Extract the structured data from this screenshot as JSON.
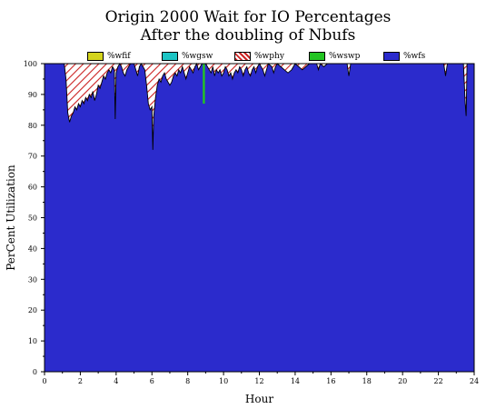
{
  "chart_data": {
    "type": "area",
    "stacked": true,
    "title": "Origin 2000 Wait for IO Percentages",
    "subtitle": "After the doubling of Nbufs",
    "xlabel": "Hour",
    "ylabel": "PerCent Utilization",
    "xlim": [
      0,
      24
    ],
    "ylim": [
      0,
      100
    ],
    "x_ticks": [
      0,
      2,
      4,
      6,
      8,
      10,
      12,
      14,
      16,
      18,
      20,
      22,
      24
    ],
    "y_ticks": [
      0,
      10,
      20,
      30,
      40,
      50,
      60,
      70,
      80,
      90,
      100
    ],
    "grid": false,
    "legend_position": "top",
    "series": [
      {
        "name": "%wfif",
        "color": "#d4d41c",
        "pattern": "solid"
      },
      {
        "name": "%wgsw",
        "color": "#1cc4c4",
        "pattern": "solid"
      },
      {
        "name": "%wphy",
        "color": "#cc2222",
        "pattern": "hatch"
      },
      {
        "name": "%wswp",
        "color": "#22c422",
        "pattern": "solid"
      },
      {
        "name": "%wfs",
        "color": "#2b2bcc",
        "pattern": "solid"
      }
    ],
    "wfs_points": [
      [
        0.0,
        100
      ],
      [
        1.1,
        100
      ],
      [
        1.2,
        95
      ],
      [
        1.3,
        84
      ],
      [
        1.4,
        81
      ],
      [
        1.5,
        83
      ],
      [
        1.6,
        84
      ],
      [
        1.7,
        86
      ],
      [
        1.8,
        85
      ],
      [
        1.9,
        87
      ],
      [
        2.0,
        86
      ],
      [
        2.1,
        88
      ],
      [
        2.2,
        87
      ],
      [
        2.3,
        89
      ],
      [
        2.4,
        88
      ],
      [
        2.5,
        90
      ],
      [
        2.6,
        89
      ],
      [
        2.7,
        91
      ],
      [
        2.8,
        88
      ],
      [
        2.9,
        90
      ],
      [
        3.0,
        93
      ],
      [
        3.1,
        92
      ],
      [
        3.2,
        94
      ],
      [
        3.3,
        96
      ],
      [
        3.4,
        95
      ],
      [
        3.5,
        97
      ],
      [
        3.6,
        98
      ],
      [
        3.7,
        97
      ],
      [
        3.8,
        99
      ],
      [
        3.9,
        98
      ],
      [
        3.95,
        82
      ],
      [
        4.0,
        97
      ],
      [
        4.1,
        99
      ],
      [
        4.2,
        100
      ],
      [
        4.3,
        99
      ],
      [
        4.4,
        97
      ],
      [
        4.5,
        96
      ],
      [
        4.6,
        98
      ],
      [
        4.7,
        99
      ],
      [
        4.8,
        100
      ],
      [
        5.0,
        100
      ],
      [
        5.1,
        98
      ],
      [
        5.2,
        96
      ],
      [
        5.3,
        99
      ],
      [
        5.4,
        100
      ],
      [
        5.6,
        98
      ],
      [
        5.7,
        93
      ],
      [
        5.8,
        87
      ],
      [
        5.9,
        85
      ],
      [
        6.0,
        86
      ],
      [
        6.05,
        72
      ],
      [
        6.1,
        83
      ],
      [
        6.2,
        89
      ],
      [
        6.3,
        93
      ],
      [
        6.4,
        95
      ],
      [
        6.5,
        94
      ],
      [
        6.6,
        96
      ],
      [
        6.7,
        97
      ],
      [
        6.8,
        95
      ],
      [
        6.9,
        94
      ],
      [
        7.0,
        93
      ],
      [
        7.1,
        94
      ],
      [
        7.2,
        96
      ],
      [
        7.3,
        97
      ],
      [
        7.4,
        96
      ],
      [
        7.5,
        98
      ],
      [
        7.6,
        97
      ],
      [
        7.7,
        99
      ],
      [
        7.8,
        97
      ],
      [
        7.9,
        95
      ],
      [
        8.0,
        97
      ],
      [
        8.1,
        99
      ],
      [
        8.2,
        98
      ],
      [
        8.3,
        97
      ],
      [
        8.4,
        99
      ],
      [
        8.5,
        100
      ],
      [
        8.6,
        98
      ],
      [
        8.7,
        99
      ],
      [
        8.8,
        100
      ],
      [
        9.0,
        100
      ],
      [
        9.1,
        99
      ],
      [
        9.2,
        98
      ],
      [
        9.3,
        97
      ],
      [
        9.4,
        99
      ],
      [
        9.5,
        96
      ],
      [
        9.6,
        98
      ],
      [
        9.7,
        97
      ],
      [
        9.8,
        98
      ],
      [
        9.9,
        96
      ],
      [
        10.0,
        97
      ],
      [
        10.1,
        99
      ],
      [
        10.2,
        98
      ],
      [
        10.3,
        96
      ],
      [
        10.4,
        97
      ],
      [
        10.5,
        95
      ],
      [
        10.6,
        97
      ],
      [
        10.7,
        98
      ],
      [
        10.8,
        97
      ],
      [
        10.9,
        99
      ],
      [
        11.0,
        98
      ],
      [
        11.1,
        96
      ],
      [
        11.2,
        98
      ],
      [
        11.3,
        99
      ],
      [
        11.4,
        97
      ],
      [
        11.5,
        96
      ],
      [
        11.6,
        98
      ],
      [
        11.7,
        99
      ],
      [
        11.8,
        97
      ],
      [
        11.9,
        99
      ],
      [
        12.0,
        100
      ],
      [
        12.2,
        98
      ],
      [
        12.3,
        96
      ],
      [
        12.4,
        98
      ],
      [
        12.5,
        100
      ],
      [
        12.7,
        99
      ],
      [
        12.8,
        97
      ],
      [
        12.9,
        99
      ],
      [
        13.0,
        100
      ],
      [
        13.2,
        99
      ],
      [
        13.4,
        98
      ],
      [
        13.6,
        97
      ],
      [
        13.8,
        98
      ],
      [
        14.0,
        100
      ],
      [
        14.2,
        99
      ],
      [
        14.4,
        98
      ],
      [
        14.6,
        99
      ],
      [
        14.8,
        100
      ],
      [
        15.2,
        100
      ],
      [
        15.3,
        98
      ],
      [
        15.4,
        100
      ],
      [
        15.6,
        99
      ],
      [
        15.8,
        100
      ],
      [
        16.9,
        100
      ],
      [
        17.0,
        96
      ],
      [
        17.1,
        100
      ],
      [
        22.3,
        100
      ],
      [
        22.4,
        96
      ],
      [
        22.5,
        100
      ],
      [
        23.4,
        100
      ],
      [
        23.5,
        87
      ],
      [
        23.55,
        83
      ],
      [
        23.6,
        100
      ],
      [
        24.0,
        100
      ]
    ],
    "wswp_spike": {
      "x": 8.9,
      "from": 87,
      "to": 100
    }
  }
}
